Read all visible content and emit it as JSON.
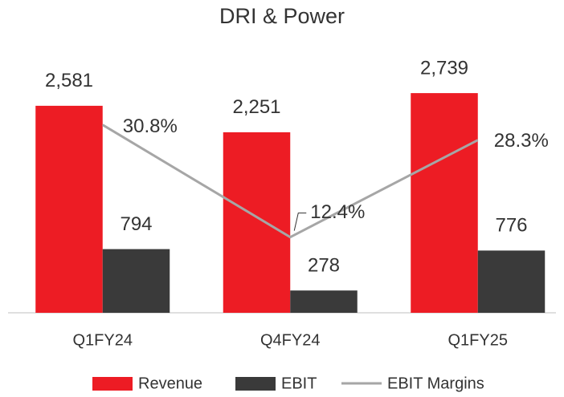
{
  "chart_data": {
    "type": "bar",
    "title": "DRI & Power",
    "categories": [
      "Q1FY24",
      "Q4FY24",
      "Q1FY25"
    ],
    "series": [
      {
        "name": "Revenue",
        "color": "#ed1c24",
        "values": [
          2581,
          2251,
          2739
        ],
        "value_labels": [
          "2,581",
          "2,251",
          "2,739"
        ]
      },
      {
        "name": "EBIT",
        "color": "#3a3a3a",
        "values": [
          794,
          278,
          776
        ]
      },
      {
        "name": "EBIT Margins",
        "type": "line",
        "axis": "y2",
        "color": "#a6a6a6",
        "values": [
          30.8,
          12.4,
          28.3
        ],
        "value_labels": [
          "30.8%",
          "12.4%",
          "28.3%"
        ]
      }
    ],
    "ylim": [
      0,
      3500
    ],
    "y2lim": [
      0,
      46
    ],
    "legend": "bottom"
  }
}
